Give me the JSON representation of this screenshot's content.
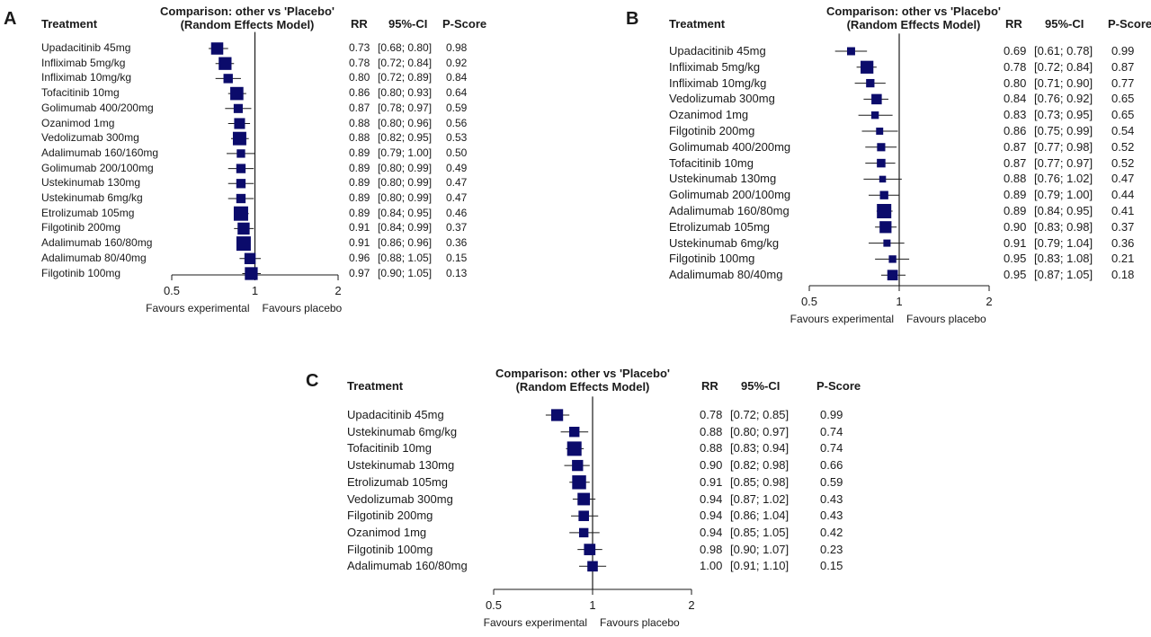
{
  "chart_data": [
    {
      "type": "forest",
      "panel_label": "A",
      "title_line1": "Comparison: other vs 'Placebo'",
      "title_line2": "(Random Effects Model)",
      "col_treatment": "Treatment",
      "col_rr": "RR",
      "col_ci": "95%-CI",
      "col_pscore": "P-Score",
      "scale": "log",
      "xlim": [
        0.5,
        2
      ],
      "xticks": [
        {
          "value": 0.5,
          "label": "0.5"
        },
        {
          "value": 1,
          "label": "1"
        },
        {
          "value": 2,
          "label": "2"
        }
      ],
      "favours_left": "Favours experimental",
      "favours_right": "Favours placebo",
      "rows": [
        {
          "treatment": "Upadacitinib 45mg",
          "rr": 0.73,
          "lo": 0.68,
          "hi": 0.8,
          "rr_text": "0.73",
          "ci_text": "[0.68; 0.80]",
          "pscore": "0.98"
        },
        {
          "treatment": "Infliximab 5mg/kg",
          "rr": 0.78,
          "lo": 0.72,
          "hi": 0.84,
          "rr_text": "0.78",
          "ci_text": "[0.72; 0.84]",
          "pscore": "0.92"
        },
        {
          "treatment": "Infliximab 10mg/kg",
          "rr": 0.8,
          "lo": 0.72,
          "hi": 0.89,
          "rr_text": "0.80",
          "ci_text": "[0.72; 0.89]",
          "pscore": "0.84"
        },
        {
          "treatment": "Tofacitinib 10mg",
          "rr": 0.86,
          "lo": 0.8,
          "hi": 0.93,
          "rr_text": "0.86",
          "ci_text": "[0.80; 0.93]",
          "pscore": "0.64"
        },
        {
          "treatment": "Golimumab 400/200mg",
          "rr": 0.87,
          "lo": 0.78,
          "hi": 0.97,
          "rr_text": "0.87",
          "ci_text": "[0.78; 0.97]",
          "pscore": "0.59"
        },
        {
          "treatment": "Ozanimod 1mg",
          "rr": 0.88,
          "lo": 0.8,
          "hi": 0.96,
          "rr_text": "0.88",
          "ci_text": "[0.80; 0.96]",
          "pscore": "0.56"
        },
        {
          "treatment": "Vedolizumab 300mg",
          "rr": 0.88,
          "lo": 0.82,
          "hi": 0.95,
          "rr_text": "0.88",
          "ci_text": "[0.82; 0.95]",
          "pscore": "0.53"
        },
        {
          "treatment": "Adalimumab 160/160mg",
          "rr": 0.89,
          "lo": 0.79,
          "hi": 1.0,
          "rr_text": "0.89",
          "ci_text": "[0.79; 1.00]",
          "pscore": "0.50"
        },
        {
          "treatment": "Golimumab 200/100mg",
          "rr": 0.89,
          "lo": 0.8,
          "hi": 0.99,
          "rr_text": "0.89",
          "ci_text": "[0.80; 0.99]",
          "pscore": "0.49"
        },
        {
          "treatment": "Ustekinumab 130mg",
          "rr": 0.89,
          "lo": 0.8,
          "hi": 0.99,
          "rr_text": "0.89",
          "ci_text": "[0.80; 0.99]",
          "pscore": "0.47"
        },
        {
          "treatment": "Ustekinumab 6mg/kg",
          "rr": 0.89,
          "lo": 0.8,
          "hi": 0.99,
          "rr_text": "0.89",
          "ci_text": "[0.80; 0.99]",
          "pscore": "0.47"
        },
        {
          "treatment": "Etrolizumab 105mg",
          "rr": 0.89,
          "lo": 0.84,
          "hi": 0.95,
          "rr_text": "0.89",
          "ci_text": "[0.84; 0.95]",
          "pscore": "0.46"
        },
        {
          "treatment": "Filgotinib 200mg",
          "rr": 0.91,
          "lo": 0.84,
          "hi": 0.99,
          "rr_text": "0.91",
          "ci_text": "[0.84; 0.99]",
          "pscore": "0.37"
        },
        {
          "treatment": "Adalimumab 160/80mg",
          "rr": 0.91,
          "lo": 0.86,
          "hi": 0.96,
          "rr_text": "0.91",
          "ci_text": "[0.86; 0.96]",
          "pscore": "0.36"
        },
        {
          "treatment": "Adalimumab 80/40mg",
          "rr": 0.96,
          "lo": 0.88,
          "hi": 1.05,
          "rr_text": "0.96",
          "ci_text": "[0.88; 1.05]",
          "pscore": "0.15"
        },
        {
          "treatment": "Filgotinib 100mg",
          "rr": 0.97,
          "lo": 0.9,
          "hi": 1.05,
          "rr_text": "0.97",
          "ci_text": "[0.90; 1.05]",
          "pscore": "0.13"
        }
      ]
    },
    {
      "type": "forest",
      "panel_label": "B",
      "title_line1": "Comparison: other vs 'Placebo'",
      "title_line2": "(Random Effects Model)",
      "col_treatment": "Treatment",
      "col_rr": "RR",
      "col_ci": "95%-CI",
      "col_pscore": "P-Score",
      "scale": "log",
      "xlim": [
        0.5,
        2
      ],
      "xticks": [
        {
          "value": 0.5,
          "label": "0.5"
        },
        {
          "value": 1,
          "label": "1"
        },
        {
          "value": 2,
          "label": "2"
        }
      ],
      "favours_left": "Favours experimental",
      "favours_right": "Favours placebo",
      "rows": [
        {
          "treatment": "Upadacitinib 45mg",
          "rr": 0.69,
          "lo": 0.61,
          "hi": 0.78,
          "rr_text": "0.69",
          "ci_text": "[0.61; 0.78]",
          "pscore": "0.99"
        },
        {
          "treatment": "Infliximab 5mg/kg",
          "rr": 0.78,
          "lo": 0.72,
          "hi": 0.84,
          "rr_text": "0.78",
          "ci_text": "[0.72; 0.84]",
          "pscore": "0.87"
        },
        {
          "treatment": "Infliximab 10mg/kg",
          "rr": 0.8,
          "lo": 0.71,
          "hi": 0.9,
          "rr_text": "0.80",
          "ci_text": "[0.71; 0.90]",
          "pscore": "0.77"
        },
        {
          "treatment": "Vedolizumab 300mg",
          "rr": 0.84,
          "lo": 0.76,
          "hi": 0.92,
          "rr_text": "0.84",
          "ci_text": "[0.76; 0.92]",
          "pscore": "0.65"
        },
        {
          "treatment": "Ozanimod 1mg",
          "rr": 0.83,
          "lo": 0.73,
          "hi": 0.95,
          "rr_text": "0.83",
          "ci_text": "[0.73; 0.95]",
          "pscore": "0.65"
        },
        {
          "treatment": "Filgotinib 200mg",
          "rr": 0.86,
          "lo": 0.75,
          "hi": 0.99,
          "rr_text": "0.86",
          "ci_text": "[0.75; 0.99]",
          "pscore": "0.54"
        },
        {
          "treatment": "Golimumab 400/200mg",
          "rr": 0.87,
          "lo": 0.77,
          "hi": 0.98,
          "rr_text": "0.87",
          "ci_text": "[0.77; 0.98]",
          "pscore": "0.52"
        },
        {
          "treatment": "Tofacitinib 10mg",
          "rr": 0.87,
          "lo": 0.77,
          "hi": 0.97,
          "rr_text": "0.87",
          "ci_text": "[0.77; 0.97]",
          "pscore": "0.52"
        },
        {
          "treatment": "Ustekinumab 130mg",
          "rr": 0.88,
          "lo": 0.76,
          "hi": 1.02,
          "rr_text": "0.88",
          "ci_text": "[0.76; 1.02]",
          "pscore": "0.47"
        },
        {
          "treatment": "Golimumab 200/100mg",
          "rr": 0.89,
          "lo": 0.79,
          "hi": 1.0,
          "rr_text": "0.89",
          "ci_text": "[0.79; 1.00]",
          "pscore": "0.44"
        },
        {
          "treatment": "Adalimumab 160/80mg",
          "rr": 0.89,
          "lo": 0.84,
          "hi": 0.95,
          "rr_text": "0.89",
          "ci_text": "[0.84; 0.95]",
          "pscore": "0.41"
        },
        {
          "treatment": "Etrolizumab 105mg",
          "rr": 0.9,
          "lo": 0.83,
          "hi": 0.98,
          "rr_text": "0.90",
          "ci_text": "[0.83; 0.98]",
          "pscore": "0.37"
        },
        {
          "treatment": "Ustekinumab 6mg/kg",
          "rr": 0.91,
          "lo": 0.79,
          "hi": 1.04,
          "rr_text": "0.91",
          "ci_text": "[0.79; 1.04]",
          "pscore": "0.36"
        },
        {
          "treatment": "Filgotinib 100mg",
          "rr": 0.95,
          "lo": 0.83,
          "hi": 1.08,
          "rr_text": "0.95",
          "ci_text": "[0.83; 1.08]",
          "pscore": "0.21"
        },
        {
          "treatment": "Adalimumab 80/40mg",
          "rr": 0.95,
          "lo": 0.87,
          "hi": 1.05,
          "rr_text": "0.95",
          "ci_text": "[0.87; 1.05]",
          "pscore": "0.18"
        }
      ]
    },
    {
      "type": "forest",
      "panel_label": "C",
      "title_line1": "Comparison: other vs 'Placebo'",
      "title_line2": "(Random Effects Model)",
      "col_treatment": "Treatment",
      "col_rr": "RR",
      "col_ci": "95%-CI",
      "col_pscore": "P-Score",
      "scale": "log",
      "xlim": [
        0.5,
        2
      ],
      "xticks": [
        {
          "value": 0.5,
          "label": "0.5"
        },
        {
          "value": 1,
          "label": "1"
        },
        {
          "value": 2,
          "label": "2"
        }
      ],
      "favours_left": "Favours experimental",
      "favours_right": "Favours placebo",
      "rows": [
        {
          "treatment": "Upadacitinib 45mg",
          "rr": 0.78,
          "lo": 0.72,
          "hi": 0.85,
          "rr_text": "0.78",
          "ci_text": "[0.72; 0.85]",
          "pscore": "0.99"
        },
        {
          "treatment": "Ustekinumab 6mg/kg",
          "rr": 0.88,
          "lo": 0.8,
          "hi": 0.97,
          "rr_text": "0.88",
          "ci_text": "[0.80; 0.97]",
          "pscore": "0.74"
        },
        {
          "treatment": "Tofacitinib 10mg",
          "rr": 0.88,
          "lo": 0.83,
          "hi": 0.94,
          "rr_text": "0.88",
          "ci_text": "[0.83; 0.94]",
          "pscore": "0.74"
        },
        {
          "treatment": "Ustekinumab 130mg",
          "rr": 0.9,
          "lo": 0.82,
          "hi": 0.98,
          "rr_text": "0.90",
          "ci_text": "[0.82; 0.98]",
          "pscore": "0.66"
        },
        {
          "treatment": "Etrolizumab 105mg",
          "rr": 0.91,
          "lo": 0.85,
          "hi": 0.98,
          "rr_text": "0.91",
          "ci_text": "[0.85; 0.98]",
          "pscore": "0.59"
        },
        {
          "treatment": "Vedolizumab 300mg",
          "rr": 0.94,
          "lo": 0.87,
          "hi": 1.02,
          "rr_text": "0.94",
          "ci_text": "[0.87; 1.02]",
          "pscore": "0.43"
        },
        {
          "treatment": "Filgotinib 200mg",
          "rr": 0.94,
          "lo": 0.86,
          "hi": 1.04,
          "rr_text": "0.94",
          "ci_text": "[0.86; 1.04]",
          "pscore": "0.43"
        },
        {
          "treatment": "Ozanimod 1mg",
          "rr": 0.94,
          "lo": 0.85,
          "hi": 1.05,
          "rr_text": "0.94",
          "ci_text": "[0.85; 1.05]",
          "pscore": "0.42"
        },
        {
          "treatment": "Filgotinib 100mg",
          "rr": 0.98,
          "lo": 0.9,
          "hi": 1.07,
          "rr_text": "0.98",
          "ci_text": "[0.90; 1.07]",
          "pscore": "0.23"
        },
        {
          "treatment": "Adalimumab 160/80mg",
          "rr": 1.0,
          "lo": 0.91,
          "hi": 1.1,
          "rr_text": "1.00",
          "ci_text": "[0.91; 1.10]",
          "pscore": "0.15"
        }
      ]
    }
  ],
  "colors": {
    "marker": "#0b0b6b",
    "line": "#1a1a1a"
  }
}
